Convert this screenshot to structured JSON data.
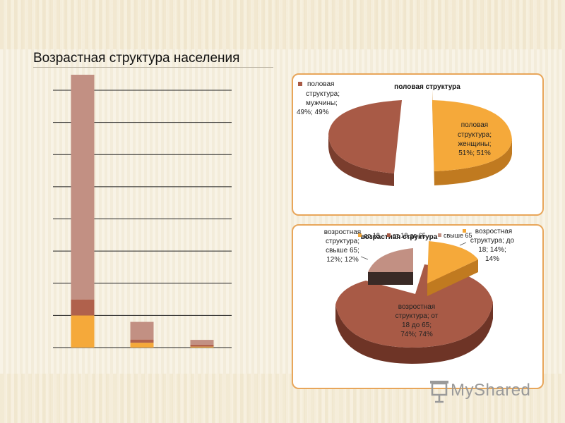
{
  "slide": {
    "title": "Возрастная структура населения"
  },
  "chart_data": [
    {
      "type": "bar",
      "stacked": true,
      "categories": [
        "",
        "",
        ""
      ],
      "series": [
        {
          "values": [
            100,
            15,
            3
          ],
          "color": "#f5a93a"
        },
        {
          "values": [
            50,
            10,
            6
          ],
          "color": "#b0614c"
        },
        {
          "values": [
            700,
            55,
            15
          ],
          "color": "#c29083"
        }
      ],
      "ylim": [
        0,
        850
      ],
      "gridlines": 8,
      "legend": "none"
    },
    {
      "type": "pie",
      "title": "половая структура",
      "slices": [
        {
          "label": "половая структура; мужчины; 49%; 49%",
          "value": 49,
          "color": "#a85a46"
        },
        {
          "label": "половая структура; женщины; 51%; 51%",
          "value": 51,
          "color": "#f5a93a"
        }
      ],
      "legend_entries": [
        "половая структура; мужчины; 49%; 49%"
      ]
    },
    {
      "type": "pie",
      "title": "возрастная структура",
      "slices": [
        {
          "label": "возростная структура; до 18; 14%; 14%",
          "value": 14,
          "color": "#f5a93a"
        },
        {
          "label": "возростная структура; от 18 до 65; 74%; 74%",
          "value": 74,
          "color": "#a85a46"
        },
        {
          "label": "возростная структура; свыше 65; 12%; 12%",
          "value": 12,
          "color": "#c29083"
        }
      ],
      "legend_entries": [
        "до 18",
        "от 18 до 65",
        "свыше 65"
      ]
    }
  ],
  "logo": {
    "text": "MyShared",
    "icon": "presentation-board-icon"
  }
}
